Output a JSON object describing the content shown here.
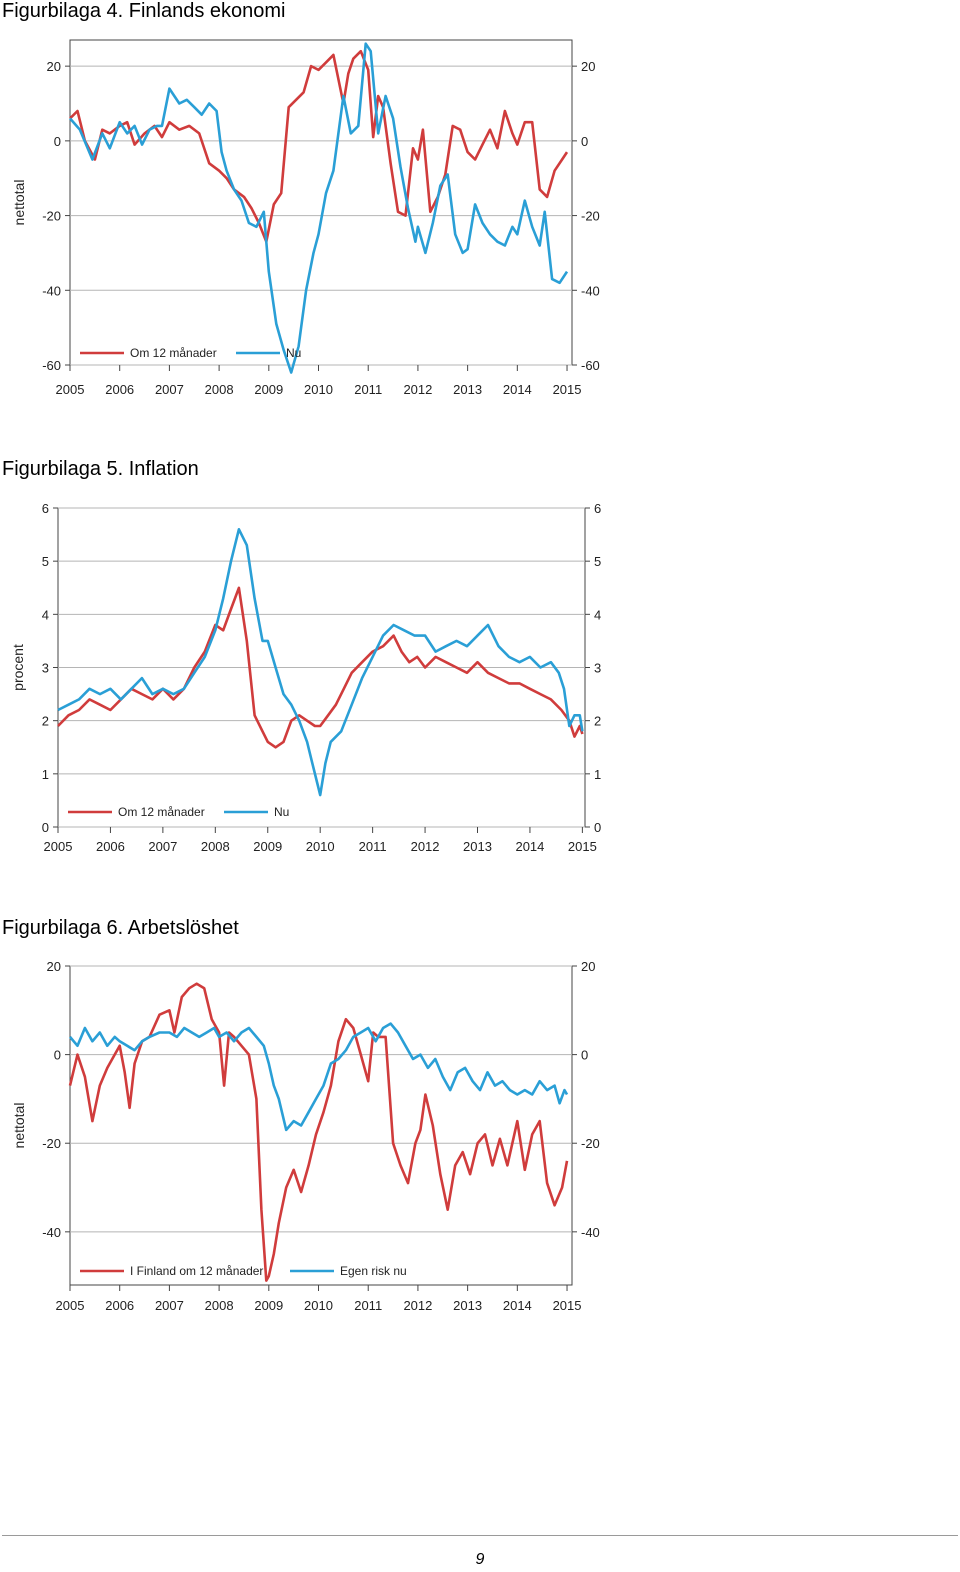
{
  "chart_data": [
    {
      "type": "line",
      "title": "Figurbilaga 4. Finlands ekonomi",
      "ylabel": "nettotal",
      "xlim": [
        2005,
        2015.1
      ],
      "ylim": [
        -60,
        27
      ],
      "yticks": [
        20,
        0,
        -20,
        -40,
        -60
      ],
      "xticks": [
        2005,
        2006,
        2007,
        2008,
        2009,
        2010,
        2011,
        2012,
        2013,
        2014,
        2015
      ],
      "grid": true,
      "legend": "bottom-left",
      "series": [
        {
          "name": "Om 12 månader",
          "color": "#d03c3c",
          "x": [
            2005.0,
            2005.15,
            2005.3,
            2005.5,
            2005.65,
            2005.8,
            2006.0,
            2006.15,
            2006.3,
            2006.5,
            2006.7,
            2006.85,
            2007.0,
            2007.2,
            2007.4,
            2007.6,
            2007.8,
            2008.0,
            2008.15,
            2008.3,
            2008.5,
            2008.65,
            2008.8,
            2008.95,
            2009.1,
            2009.25,
            2009.4,
            2009.55,
            2009.7,
            2009.85,
            2010.0,
            2010.15,
            2010.3,
            2010.5,
            2010.6,
            2010.7,
            2010.85,
            2011.0,
            2011.1,
            2011.2,
            2011.3,
            2011.45,
            2011.6,
            2011.75,
            2011.9,
            2012.0,
            2012.1,
            2012.25,
            2012.4,
            2012.55,
            2012.7,
            2012.85,
            2013.0,
            2013.15,
            2013.3,
            2013.45,
            2013.6,
            2013.75,
            2013.9,
            2014.0,
            2014.15,
            2014.3,
            2014.45,
            2014.6,
            2014.75,
            2014.9,
            2015.0
          ],
          "y": [
            6,
            8,
            0,
            -5,
            3,
            2,
            4,
            5,
            -1,
            2,
            4,
            1,
            5,
            3,
            4,
            2,
            -6,
            -8,
            -10,
            -13,
            -15,
            -18,
            -22,
            -27,
            -17,
            -14,
            9,
            11,
            13,
            20,
            19,
            21,
            23,
            10,
            18,
            22,
            24,
            19,
            1,
            12,
            9,
            -6,
            -19,
            -20,
            -2,
            -5,
            3,
            -19,
            -15,
            -9,
            4,
            3,
            -3,
            -5,
            -1,
            3,
            -2,
            8,
            2,
            -1,
            5,
            5,
            -13,
            -15,
            -8,
            -5,
            -3
          ]
        },
        {
          "name": "Nu",
          "color": "#2a9fd6",
          "x": [
            2005.0,
            2005.2,
            2005.45,
            2005.65,
            2005.8,
            2006.0,
            2006.15,
            2006.3,
            2006.45,
            2006.6,
            2006.75,
            2006.85,
            2007.0,
            2007.2,
            2007.35,
            2007.5,
            2007.65,
            2007.8,
            2007.95,
            2008.05,
            2008.15,
            2008.3,
            2008.45,
            2008.6,
            2008.75,
            2008.9,
            2009.0,
            2009.15,
            2009.3,
            2009.45,
            2009.6,
            2009.75,
            2009.9,
            2010.0,
            2010.15,
            2010.3,
            2010.5,
            2010.65,
            2010.8,
            2010.95,
            2011.05,
            2011.2,
            2011.35,
            2011.5,
            2011.65,
            2011.8,
            2011.95,
            2012.0,
            2012.15,
            2012.3,
            2012.45,
            2012.6,
            2012.75,
            2012.9,
            2013.0,
            2013.15,
            2013.3,
            2013.45,
            2013.6,
            2013.75,
            2013.9,
            2014.0,
            2014.15,
            2014.3,
            2014.45,
            2014.55,
            2014.7,
            2014.85,
            2015.0
          ],
          "y": [
            6,
            3,
            -5,
            2,
            -2,
            5,
            2,
            4,
            -1,
            3,
            4,
            4,
            14,
            10,
            11,
            9,
            7,
            10,
            8,
            -3,
            -8,
            -13,
            -16,
            -22,
            -23,
            -19,
            -35,
            -49,
            -56,
            -62,
            -55,
            -40,
            -30,
            -25,
            -14,
            -8,
            12,
            2,
            4,
            26,
            24,
            2,
            12,
            6,
            -7,
            -18,
            -27,
            -23,
            -30,
            -22,
            -12,
            -9,
            -25,
            -30,
            -29,
            -17,
            -22,
            -25,
            -27,
            -28,
            -23,
            -25,
            -16,
            -23,
            -28,
            -19,
            -37,
            -38,
            -35
          ]
        }
      ]
    },
    {
      "type": "line",
      "title": "Figurbilaga 5. Inflation",
      "ylabel": "procent",
      "xlim": [
        2005,
        2015.05
      ],
      "ylim": [
        0,
        6
      ],
      "yticks": [
        6,
        5,
        4,
        3,
        2,
        1,
        0
      ],
      "xticks": [
        2005,
        2006,
        2007,
        2008,
        2009,
        2010,
        2011,
        2012,
        2013,
        2014,
        2015
      ],
      "grid": true,
      "legend": "bottom-left",
      "series": [
        {
          "name": "Om 12 månader",
          "color": "#d03c3c",
          "x": [
            2005.0,
            2005.2,
            2005.4,
            2005.6,
            2005.8,
            2006.0,
            2006.2,
            2006.4,
            2006.6,
            2006.8,
            2007.0,
            2007.2,
            2007.4,
            2007.6,
            2007.8,
            2008.0,
            2008.15,
            2008.3,
            2008.45,
            2008.6,
            2008.75,
            2008.9,
            2009.0,
            2009.15,
            2009.3,
            2009.45,
            2009.6,
            2009.75,
            2009.9,
            2010.0,
            2010.15,
            2010.3,
            2010.45,
            2010.6,
            2010.8,
            2011.0,
            2011.2,
            2011.4,
            2011.55,
            2011.7,
            2011.85,
            2012.0,
            2012.2,
            2012.4,
            2012.6,
            2012.8,
            2013.0,
            2013.2,
            2013.4,
            2013.6,
            2013.8,
            2014.0,
            2014.2,
            2014.4,
            2014.6,
            2014.75,
            2014.85,
            2014.95,
            2015.0
          ],
          "y": [
            1.9,
            2.1,
            2.2,
            2.4,
            2.3,
            2.2,
            2.4,
            2.6,
            2.5,
            2.4,
            2.6,
            2.4,
            2.6,
            3.0,
            3.3,
            3.8,
            3.7,
            4.1,
            4.5,
            3.5,
            2.1,
            1.8,
            1.6,
            1.5,
            1.6,
            2.0,
            2.1,
            2.0,
            1.9,
            1.9,
            2.1,
            2.3,
            2.6,
            2.9,
            3.1,
            3.3,
            3.4,
            3.6,
            3.3,
            3.1,
            3.2,
            3.0,
            3.2,
            3.1,
            3.0,
            2.9,
            3.1,
            2.9,
            2.8,
            2.7,
            2.7,
            2.6,
            2.5,
            2.4,
            2.2,
            2.0,
            1.7,
            1.9,
            1.75
          ]
        },
        {
          "name": "Nu",
          "color": "#2a9fd6",
          "x": [
            2005.0,
            2005.2,
            2005.4,
            2005.6,
            2005.8,
            2006.0,
            2006.2,
            2006.4,
            2006.6,
            2006.8,
            2007.0,
            2007.2,
            2007.4,
            2007.6,
            2007.8,
            2008.0,
            2008.15,
            2008.3,
            2008.45,
            2008.6,
            2008.75,
            2008.9,
            2009.0,
            2009.15,
            2009.3,
            2009.45,
            2009.6,
            2009.75,
            2009.85,
            2009.95,
            2010.0,
            2010.1,
            2010.2,
            2010.4,
            2010.6,
            2010.8,
            2011.0,
            2011.2,
            2011.4,
            2011.6,
            2011.8,
            2012.0,
            2012.2,
            2012.4,
            2012.6,
            2012.8,
            2013.0,
            2013.2,
            2013.4,
            2013.6,
            2013.8,
            2014.0,
            2014.2,
            2014.4,
            2014.55,
            2014.65,
            2014.75,
            2014.85,
            2014.95,
            2015.0
          ],
          "y": [
            2.2,
            2.3,
            2.4,
            2.6,
            2.5,
            2.6,
            2.4,
            2.6,
            2.8,
            2.5,
            2.6,
            2.5,
            2.6,
            2.9,
            3.2,
            3.7,
            4.3,
            5.0,
            5.6,
            5.3,
            4.3,
            3.5,
            3.5,
            3.0,
            2.5,
            2.3,
            2.0,
            1.6,
            1.2,
            0.8,
            0.6,
            1.2,
            1.6,
            1.8,
            2.3,
            2.8,
            3.2,
            3.6,
            3.8,
            3.7,
            3.6,
            3.6,
            3.3,
            3.4,
            3.5,
            3.4,
            3.6,
            3.8,
            3.4,
            3.2,
            3.1,
            3.2,
            3.0,
            3.1,
            2.9,
            2.6,
            1.9,
            2.1,
            2.1,
            1.8
          ]
        }
      ]
    },
    {
      "type": "line",
      "title": "Figurbilaga 6. Arbetslöshet",
      "ylabel": "nettotal",
      "xlim": [
        2005,
        2015.1
      ],
      "ylim": [
        -52,
        20
      ],
      "yticks": [
        20,
        0,
        -20,
        -40
      ],
      "xticks": [
        2005,
        2006,
        2007,
        2008,
        2009,
        2010,
        2011,
        2012,
        2013,
        2014,
        2015
      ],
      "grid": true,
      "legend": "bottom-left",
      "series": [
        {
          "name": "I Finland om 12 månader",
          "color": "#d03c3c",
          "x": [
            2005.0,
            2005.15,
            2005.3,
            2005.45,
            2005.6,
            2005.75,
            2005.9,
            2006.0,
            2006.1,
            2006.2,
            2006.3,
            2006.45,
            2006.6,
            2006.8,
            2007.0,
            2007.1,
            2007.25,
            2007.4,
            2007.55,
            2007.7,
            2007.85,
            2008.0,
            2008.1,
            2008.2,
            2008.3,
            2008.45,
            2008.6,
            2008.75,
            2008.85,
            2008.95,
            2009.0,
            2009.1,
            2009.2,
            2009.35,
            2009.5,
            2009.65,
            2009.8,
            2009.95,
            2010.1,
            2010.25,
            2010.4,
            2010.55,
            2010.7,
            2010.85,
            2011.0,
            2011.1,
            2011.2,
            2011.35,
            2011.5,
            2011.65,
            2011.8,
            2011.95,
            2012.05,
            2012.15,
            2012.3,
            2012.45,
            2012.6,
            2012.75,
            2012.9,
            2013.05,
            2013.2,
            2013.35,
            2013.5,
            2013.65,
            2013.8,
            2014.0,
            2014.15,
            2014.3,
            2014.45,
            2014.6,
            2014.75,
            2014.9,
            2015.0
          ],
          "y": [
            -7,
            0,
            -5,
            -15,
            -7,
            -3,
            0,
            2,
            -4,
            -12,
            -2,
            3,
            4,
            9,
            10,
            5,
            13,
            15,
            16,
            15,
            8,
            5,
            -7,
            5,
            4,
            2,
            0,
            -10,
            -35,
            -51,
            -50,
            -45,
            -38,
            -30,
            -26,
            -31,
            -25,
            -18,
            -13,
            -7,
            3,
            8,
            6,
            0,
            -6,
            5,
            4,
            4,
            -20,
            -25,
            -29,
            -20,
            -17,
            -9,
            -16,
            -27,
            -35,
            -25,
            -22,
            -27,
            -20,
            -18,
            -25,
            -19,
            -25,
            -15,
            -26,
            -18,
            -15,
            -29,
            -34,
            -30,
            -24
          ]
        },
        {
          "name": "Egen risk nu",
          "color": "#2a9fd6",
          "x": [
            2005.0,
            2005.15,
            2005.3,
            2005.45,
            2005.6,
            2005.75,
            2005.9,
            2006.0,
            2006.15,
            2006.3,
            2006.45,
            2006.6,
            2006.8,
            2007.0,
            2007.15,
            2007.3,
            2007.45,
            2007.6,
            2007.75,
            2007.9,
            2008.0,
            2008.15,
            2008.3,
            2008.45,
            2008.6,
            2008.75,
            2008.9,
            2009.0,
            2009.1,
            2009.2,
            2009.35,
            2009.5,
            2009.65,
            2009.8,
            2009.95,
            2010.1,
            2010.25,
            2010.4,
            2010.55,
            2010.7,
            2010.85,
            2011.0,
            2011.15,
            2011.3,
            2011.45,
            2011.6,
            2011.75,
            2011.9,
            2012.05,
            2012.2,
            2012.35,
            2012.5,
            2012.65,
            2012.8,
            2012.95,
            2013.1,
            2013.25,
            2013.4,
            2013.55,
            2013.7,
            2013.85,
            2014.0,
            2014.15,
            2014.3,
            2014.45,
            2014.6,
            2014.75,
            2014.85,
            2014.95,
            2015.0
          ],
          "y": [
            4,
            2,
            6,
            3,
            5,
            2,
            4,
            3,
            2,
            1,
            3,
            4,
            5,
            5,
            4,
            6,
            5,
            4,
            5,
            6,
            4,
            5,
            3,
            5,
            6,
            4,
            2,
            -2,
            -7,
            -10,
            -17,
            -15,
            -16,
            -13,
            -10,
            -7,
            -2,
            -1,
            1,
            4,
            5,
            6,
            3,
            6,
            7,
            5,
            2,
            -1,
            0,
            -3,
            -1,
            -5,
            -8,
            -4,
            -3,
            -6,
            -8,
            -4,
            -7,
            -6,
            -8,
            -9,
            -8,
            -9,
            -6,
            -8,
            -7,
            -11,
            -8,
            -9
          ]
        }
      ]
    }
  ],
  "footer": {
    "page_number": "9"
  }
}
